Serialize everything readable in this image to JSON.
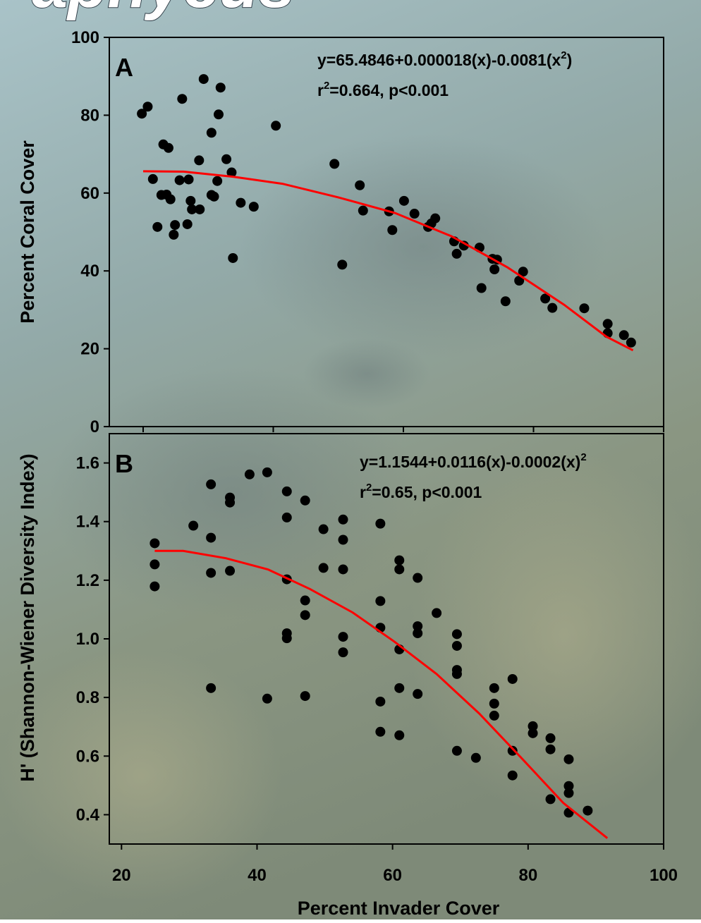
{
  "chart_data": [
    {
      "type": "scatter",
      "title": "aphycus",
      "panel_label": "A",
      "ylabel": "Percent Coral Cover",
      "equation": [
        "y=65.4846+0.000018(x)-0.0081(x",
        "2",
        ")"
      ],
      "statistics": [
        "r",
        "2",
        "=0.664, p<0.001"
      ],
      "xlim": [
        14.8,
        100
      ],
      "ylim": [
        0,
        100
      ],
      "xticks": [
        20,
        40,
        60,
        80,
        100
      ],
      "show_xtick_labels": false,
      "yticks": [
        0,
        20,
        40,
        60,
        80,
        100
      ],
      "series": [
        {
          "type": "scatter",
          "color": "#000000",
          "x": [
            19.8,
            20.7,
            21.5,
            22.2,
            22.8,
            23.1,
            23.6,
            23.9,
            24.2,
            24.7,
            24.9,
            25.6,
            26.0,
            26.8,
            27.0,
            27.3,
            27.5,
            28.6,
            28.7,
            29.3,
            30.5,
            30.5,
            30.9,
            31.4,
            31.6,
            31.9,
            32.8,
            33.6,
            33.8,
            35.0,
            37.0,
            40.4,
            49.4,
            50.6,
            53.3,
            53.8,
            57.8,
            58.3,
            60.1,
            61.7,
            63.8,
            64.3,
            64.9,
            67.8,
            68.2,
            69.3,
            71.7,
            72.0,
            73.7,
            74.0,
            74.4,
            75.7,
            77.8,
            78.4,
            81.8,
            82.9,
            87.8,
            91.4,
            91.4,
            93.9,
            95.0
          ],
          "values": [
            80.4,
            82.2,
            63.6,
            51.3,
            59.5,
            72.5,
            59.6,
            71.6,
            58.4,
            49.3,
            51.8,
            63.3,
            84.2,
            52.0,
            63.5,
            58.0,
            55.8,
            68.4,
            55.8,
            89.3,
            59.5,
            75.5,
            59.1,
            63.1,
            80.2,
            87.1,
            68.7,
            65.3,
            43.3,
            57.5,
            56.5,
            77.3,
            67.5,
            41.6,
            62.0,
            55.5,
            55.3,
            50.5,
            58.0,
            54.7,
            51.3,
            52.2,
            53.5,
            47.6,
            44.4,
            46.5,
            46.0,
            35.6,
            43.1,
            40.4,
            42.9,
            32.2,
            37.5,
            39.8,
            32.9,
            30.5,
            30.4,
            26.4,
            24.0,
            23.5,
            21.6
          ]
        },
        {
          "type": "line",
          "color": "#ff0000",
          "x": [
            20.0,
            26.2,
            33.8,
            41.4,
            50.0,
            58.7,
            67.4,
            76.0,
            84.7,
            91.2,
            95.3
          ],
          "values": [
            65.6,
            65.5,
            64.2,
            62.4,
            58.9,
            54.9,
            48.9,
            40.9,
            31.3,
            23.1,
            19.6
          ]
        }
      ]
    },
    {
      "type": "scatter",
      "panel_label": "B",
      "ylabel": "H' (Shannon-Wiener Diversity Index)",
      "xlabel": "Percent Invader Cover",
      "equation": [
        "y=1.1544+0.0116(x)-0.0002(x)",
        "2",
        ""
      ],
      "statistics": [
        "r",
        "2",
        "=0.65, p<0.001"
      ],
      "xlim": [
        18.2,
        100
      ],
      "ylim": [
        0.3,
        1.7
      ],
      "xticks": [
        20,
        40,
        60,
        80,
        100
      ],
      "show_xtick_labels": true,
      "yticks": [
        0.4,
        0.6,
        0.8,
        {
          "value": 1,
          "label": "1.0"
        },
        1.2,
        1.4,
        1.6
      ],
      "series": [
        {
          "type": "scatter",
          "color": "#000000",
          "x": [
            24.9,
            24.9,
            24.9,
            30.6,
            33.2,
            33.2,
            33.2,
            33.2,
            36.0,
            36.0,
            36.0,
            38.9,
            41.5,
            41.5,
            44.4,
            44.4,
            44.4,
            44.4,
            44.4,
            47.1,
            47.1,
            47.1,
            47.1,
            49.8,
            49.8,
            52.7,
            52.7,
            52.7,
            52.7,
            52.7,
            58.2,
            58.2,
            58.2,
            58.2,
            58.2,
            61.0,
            61.0,
            61.0,
            61.0,
            61.0,
            63.7,
            63.7,
            63.7,
            63.7,
            66.5,
            69.5,
            69.5,
            69.5,
            69.5,
            69.5,
            72.3,
            75.0,
            75.0,
            75.0,
            77.7,
            77.7,
            77.7,
            80.7,
            80.7,
            83.3,
            83.3,
            83.3,
            86.0,
            86.0,
            86.0,
            86.0,
            88.8
          ],
          "values": [
            1.326,
            1.254,
            1.179,
            1.386,
            1.527,
            1.345,
            1.225,
            0.832,
            1.482,
            1.465,
            1.232,
            1.561,
            1.568,
            0.796,
            1.503,
            1.414,
            1.203,
            1.019,
            1.002,
            1.472,
            1.131,
            1.081,
            0.805,
            1.374,
            1.242,
            1.407,
            1.338,
            1.237,
            1.007,
            0.954,
            1.393,
            1.129,
            1.038,
            0.786,
            0.683,
            1.268,
            1.237,
            0.964,
            0.832,
            0.671,
            1.208,
            1.043,
            1.019,
            0.812,
            1.088,
            1.016,
            0.976,
            0.894,
            0.88,
            0.618,
            0.594,
            0.832,
            0.779,
            0.738,
            0.863,
            0.618,
            0.534,
            0.702,
            0.678,
            0.661,
            0.623,
            0.453,
            0.589,
            0.498,
            0.474,
            0.407,
            0.414
          ]
        },
        {
          "type": "line",
          "color": "#ff0000",
          "x": [
            24.9,
            29.1,
            35.4,
            41.6,
            47.8,
            54.1,
            60.3,
            66.5,
            72.8,
            79.0,
            85.2,
            91.7
          ],
          "values": [
            1.3,
            1.3,
            1.275,
            1.237,
            1.17,
            1.09,
            0.99,
            0.88,
            0.745,
            0.594,
            0.44,
            0.32
          ]
        }
      ]
    }
  ]
}
